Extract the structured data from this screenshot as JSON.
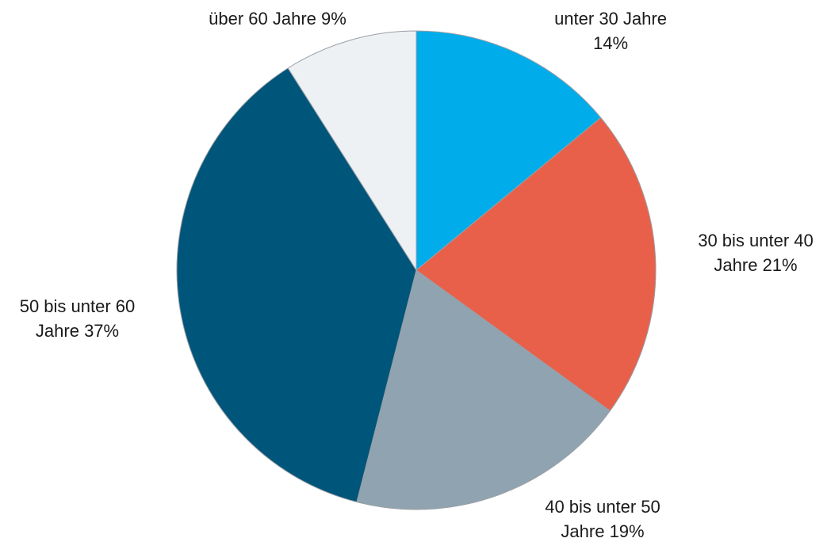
{
  "chart_data": {
    "type": "pie",
    "categories": [
      "unter 30 Jahre",
      "30 bis unter 40 Jahre",
      "40 bis unter 50 Jahre",
      "50 bis unter 60 Jahre",
      "über 60 Jahre"
    ],
    "values": [
      14,
      21,
      19,
      37,
      9
    ],
    "value_labels": [
      "14%",
      "21%",
      "19%",
      "37%",
      "9%"
    ],
    "colors": [
      "#00adea",
      "#e8604a",
      "#8fa3b0",
      "#00557a",
      "#eef1f4"
    ]
  }
}
